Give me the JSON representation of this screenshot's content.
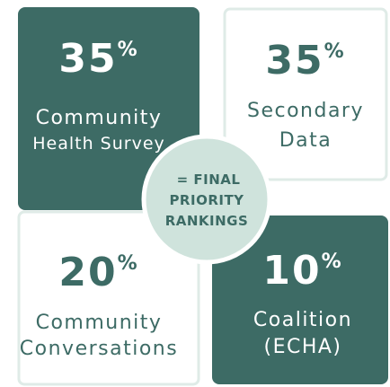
{
  "panels": [
    {
      "percent": 35,
      "unit": "%",
      "label_lines": [
        "Community",
        "Health Survey"
      ]
    },
    {
      "percent": 35,
      "unit": "%",
      "label_lines": [
        "Secondary",
        "Data"
      ]
    },
    {
      "percent": 20,
      "unit": "%",
      "label_lines": [
        "Community",
        "Conversations"
      ]
    },
    {
      "percent": 10,
      "unit": "%",
      "label_lines": [
        "Coalition",
        "(ECHA)"
      ]
    }
  ],
  "center": {
    "lines": [
      "= FINAL",
      "PRIORITY",
      "RANKINGS"
    ]
  }
}
